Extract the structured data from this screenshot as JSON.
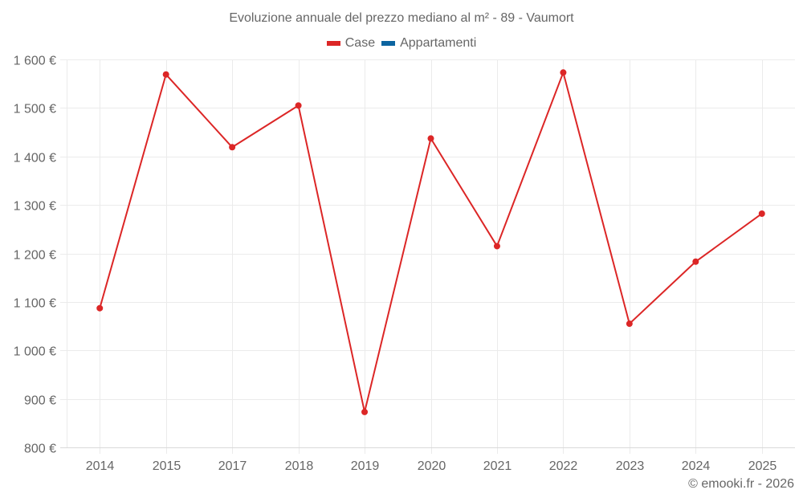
{
  "title": "Evoluzione annuale del prezzo mediano al m² - 89 - Vaumort",
  "legend": [
    {
      "label": "Case",
      "color": "#dc2626"
    },
    {
      "label": "Appartamenti",
      "color": "#0b64a0"
    }
  ],
  "credit": "© emooki.fr - 2026",
  "colors": {
    "grid": "#ebebeb",
    "axis": "#d9d9d9",
    "text": "#666666",
    "series_case": "#dc2626"
  },
  "chart_data": {
    "type": "line",
    "title": "Evoluzione annuale del prezzo mediano al m² - 89 - Vaumort",
    "xlabel": "",
    "ylabel": "",
    "categories": [
      "2014",
      "2015",
      "2017",
      "2018",
      "2019",
      "2020",
      "2021",
      "2022",
      "2023",
      "2024",
      "2025"
    ],
    "series": [
      {
        "name": "Case",
        "color": "#dc2626",
        "values": [
          1087,
          1569,
          1419,
          1505,
          873,
          1437,
          1215,
          1573,
          1055,
          1183,
          1282
        ]
      },
      {
        "name": "Appartamenti",
        "color": "#0b64a0",
        "values": []
      }
    ],
    "ylim": [
      800,
      1600
    ],
    "yticks": [
      800,
      900,
      1000,
      1100,
      1200,
      1300,
      1400,
      1500,
      1600
    ],
    "ytick_labels": [
      "800 €",
      "900 €",
      "1 000 €",
      "1 100 €",
      "1 200 €",
      "1 300 €",
      "1 400 €",
      "1 500 €",
      "1 600 €"
    ],
    "grid": true,
    "legend_position": "top"
  }
}
